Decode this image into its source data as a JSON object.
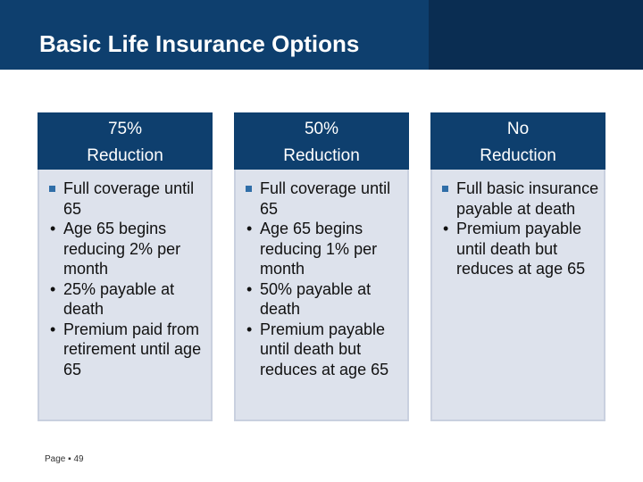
{
  "slide": {
    "title": "Basic Life Insurance Options",
    "page_label": "Page ▪ 49"
  },
  "columns": [
    {
      "heading_line1": "75%",
      "heading_line2": "Reduction",
      "items": [
        {
          "marker": "square",
          "text": "Full coverage until 65"
        },
        {
          "marker": "•",
          "text": "Age 65 begins reducing 2% per month"
        },
        {
          "marker": "•",
          "text": "25% payable at death"
        },
        {
          "marker": "•",
          "text": "Premium paid from retirement until age 65"
        }
      ]
    },
    {
      "heading_line1": "50%",
      "heading_line2": "Reduction",
      "items": [
        {
          "marker": "square",
          "text": "Full coverage until 65"
        },
        {
          "marker": "•",
          "text": "Age 65 begins reducing 1% per month"
        },
        {
          "marker": "•",
          "text": "50% payable at death"
        },
        {
          "marker": "•",
          "text": "Premium payable until death but reduces at age 65"
        }
      ]
    },
    {
      "heading_line1": "No",
      "heading_line2": "Reduction",
      "items": [
        {
          "marker": "square",
          "text": "Full basic insurance payable at death"
        },
        {
          "marker": "•",
          "text": "Premium payable until death but reduces at age 65"
        }
      ]
    }
  ],
  "colors": {
    "header_blue": "#0e3f6e",
    "header_dark": "#0a2d52",
    "panel_bg": "#dde2ec",
    "square_bullet": "#2f6ea8"
  }
}
